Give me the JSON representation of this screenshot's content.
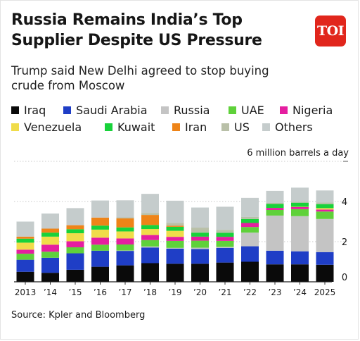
{
  "title": {
    "line1": "Russia Remains India’s Top",
    "line2": "Supplier Despite US Pressure"
  },
  "logo_text": "TOI",
  "subtitle": {
    "line1": "Trump said New Delhi agreed to stop buying",
    "line2": "crude from Moscow"
  },
  "legend": {
    "row1": [
      {
        "label": "Iraq",
        "color": "#0a0a0a"
      },
      {
        "label": "Saudi Arabia",
        "color": "#1f3ec6"
      },
      {
        "label": "Russia",
        "color": "#c4c4c4"
      },
      {
        "label": "UAE",
        "color": "#5fd13a"
      },
      {
        "label": "Nigeria",
        "color": "#e51ea0"
      }
    ],
    "row2": [
      {
        "label": "Venezuela",
        "color": "#f0dc4a"
      },
      {
        "label": "Kuwait",
        "color": "#18d23a"
      },
      {
        "label": "Iran",
        "color": "#ee8418"
      },
      {
        "label": "US",
        "color": "#b9c0a8"
      },
      {
        "label": "Others",
        "color": "#c5cccc"
      }
    ]
  },
  "unit_label": "6 million barrels a day",
  "source": "Source: Kpler and Bloomberg",
  "chart_data": {
    "type": "bar",
    "stacked": true,
    "categories": [
      "2013",
      "’14",
      "’15",
      "’16",
      "’17",
      "’18",
      "’19",
      "’20",
      "’21",
      "’22",
      "’23",
      "’24",
      "2025"
    ],
    "ylim": [
      0,
      6
    ],
    "yticks": [
      0,
      2,
      4
    ],
    "grid": true,
    "series": [
      {
        "name": "Iraq",
        "color": "#0a0a0a",
        "values": [
          0.5,
          0.45,
          0.6,
          0.75,
          0.82,
          0.93,
          0.9,
          0.9,
          0.96,
          1.0,
          0.87,
          0.87,
          0.85
        ]
      },
      {
        "name": "Saudi Arabia",
        "color": "#1f3ec6",
        "values": [
          0.6,
          0.75,
          0.82,
          0.8,
          0.72,
          0.78,
          0.75,
          0.73,
          0.73,
          0.77,
          0.68,
          0.65,
          0.63
        ]
      },
      {
        "name": "Russia",
        "color": "#c4c4c4",
        "values": [
          0.0,
          0.0,
          0.0,
          0.0,
          0.02,
          0.05,
          0.04,
          0.07,
          0.05,
          0.68,
          1.75,
          1.75,
          1.65
        ]
      },
      {
        "name": "UAE",
        "color": "#5fd13a",
        "values": [
          0.3,
          0.3,
          0.3,
          0.3,
          0.3,
          0.32,
          0.35,
          0.35,
          0.3,
          0.28,
          0.28,
          0.35,
          0.37
        ]
      },
      {
        "name": "Nigeria",
        "color": "#e51ea0",
        "values": [
          0.2,
          0.35,
          0.3,
          0.35,
          0.3,
          0.25,
          0.2,
          0.2,
          0.2,
          0.2,
          0.1,
          0.1,
          0.1
        ]
      },
      {
        "name": "Venezuela",
        "color": "#f0dc4a",
        "values": [
          0.35,
          0.4,
          0.4,
          0.4,
          0.35,
          0.3,
          0.3,
          0.0,
          0.0,
          0.0,
          0.0,
          0.02,
          0.07
        ]
      },
      {
        "name": "Kuwait",
        "color": "#18d23a",
        "values": [
          0.2,
          0.2,
          0.2,
          0.2,
          0.2,
          0.2,
          0.2,
          0.2,
          0.2,
          0.2,
          0.2,
          0.2,
          0.2
        ]
      },
      {
        "name": "Iran",
        "color": "#ee8418",
        "values": [
          0.1,
          0.2,
          0.2,
          0.4,
          0.45,
          0.5,
          0.05,
          0.0,
          0.0,
          0.0,
          0.0,
          0.0,
          0.0
        ]
      },
      {
        "name": "US",
        "color": "#b9c0a8",
        "values": [
          0.0,
          0.0,
          0.0,
          0.0,
          0.05,
          0.1,
          0.15,
          0.25,
          0.15,
          0.1,
          0.05,
          0.05,
          0.08
        ]
      },
      {
        "name": "Others",
        "color": "#c5cccc",
        "values": [
          0.75,
          0.75,
          0.85,
          0.85,
          0.85,
          0.95,
          1.1,
          1.0,
          1.15,
          0.95,
          0.6,
          0.7,
          0.6
        ]
      }
    ]
  }
}
